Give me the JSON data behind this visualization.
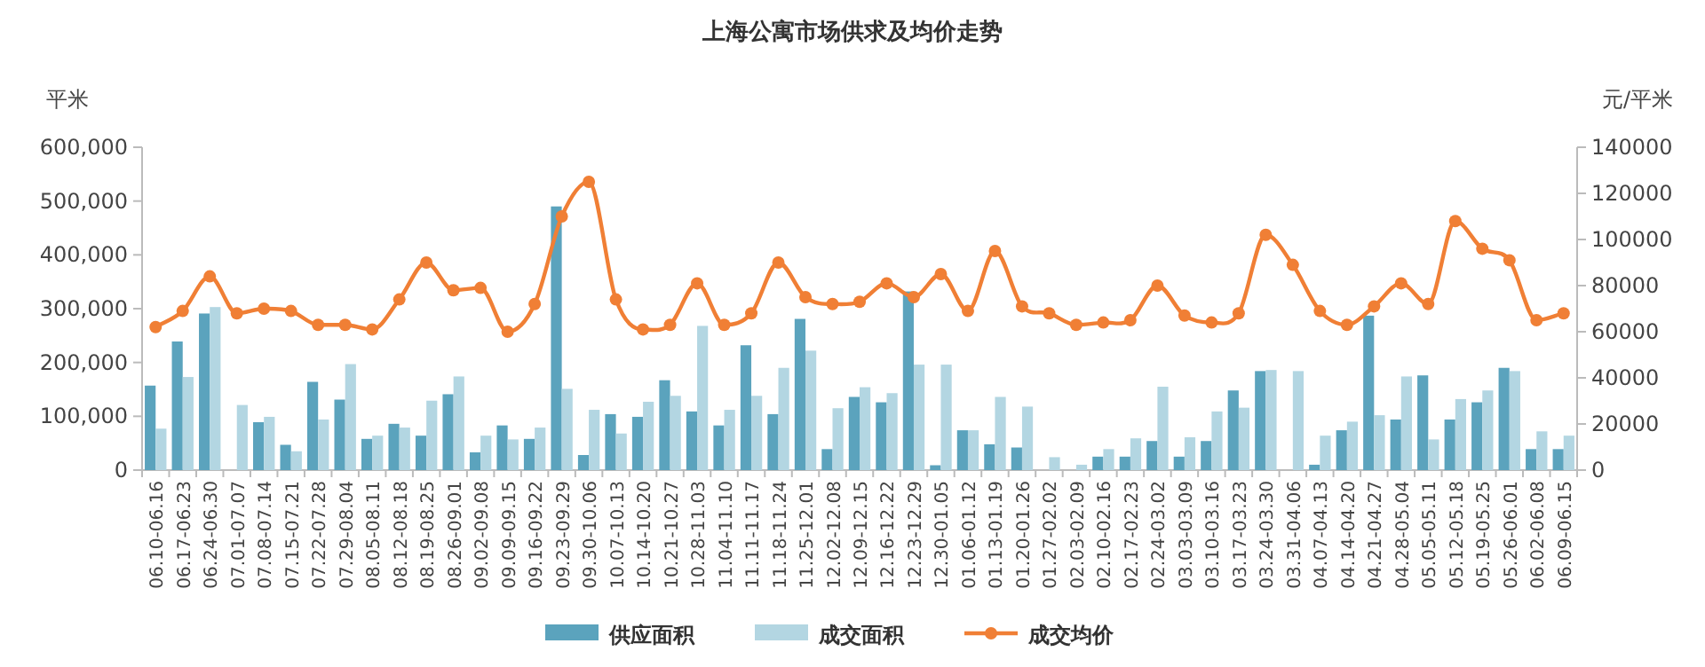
{
  "chart_data": {
    "type": "bar",
    "title": "上海公寓市场供求及均价走势",
    "ylabel": "平米",
    "y2label": "元/平米",
    "categories": [
      "06.10-06.16",
      "06.17-06.23",
      "06.24-06.30",
      "07.01-07.07",
      "07.08-07.14",
      "07.15-07.21",
      "07.22-07.28",
      "07.29-08.04",
      "08.05-08.11",
      "08.12-08.18",
      "08.19-08.25",
      "08.26-09.01",
      "09.02-09.08",
      "09.09-09.15",
      "09.16-09.22",
      "09.23-09.29",
      "09.30-10.06",
      "10.07-10.13",
      "10.14-10.20",
      "10.21-10.27",
      "10.28-11.03",
      "11.04-11.10",
      "11.11-11.17",
      "11.18-11.24",
      "11.25-12.01",
      "12.02-12.08",
      "12.09-12.15",
      "12.16-12.22",
      "12.23-12.29",
      "12.30-01.05",
      "01.06-01.12",
      "01.13-01.19",
      "01.20-01.26",
      "01.27-02.02",
      "02.03-02.09",
      "02.10-02.16",
      "02.17-02.23",
      "02.24-03.02",
      "03.03-03.09",
      "03.10-03.16",
      "03.17-03.23",
      "03.24-03.30",
      "03.31-04.06",
      "04.07-04.13",
      "04.14-04.20",
      "04.21-04.27",
      "04.28-05.04",
      "05.05-05.11",
      "05.12-05.18",
      "05.19-05.25",
      "05.26-06.01",
      "06.02-06.08",
      "06.09-06.15"
    ],
    "series": [
      {
        "name": "供应面积",
        "color": "#5ba3bd",
        "values": [
          157000,
          239000,
          291000,
          0,
          89000,
          47000,
          164000,
          131000,
          58000,
          86000,
          64000,
          141000,
          33000,
          83000,
          58000,
          490000,
          28000,
          104000,
          99000,
          167000,
          109000,
          83000,
          232000,
          104000,
          281000,
          39000,
          136000,
          126000,
          332000,
          9000,
          74000,
          48000,
          42000,
          0,
          0,
          25000,
          25000,
          54000,
          25000,
          54000,
          148000,
          184000,
          0,
          10000,
          74000,
          287000,
          94000,
          176000,
          94000,
          126000,
          190000,
          39000,
          39000
        ]
      },
      {
        "name": "成交面积",
        "color": "#b3d6e2",
        "values": [
          77000,
          173000,
          303000,
          121000,
          99000,
          35000,
          94000,
          197000,
          64000,
          79000,
          129000,
          174000,
          64000,
          57000,
          79000,
          151000,
          112000,
          68000,
          127000,
          138000,
          268000,
          112000,
          138000,
          190000,
          222000,
          115000,
          154000,
          143000,
          196000,
          196000,
          74000,
          136000,
          118000,
          24000,
          10000,
          39000,
          59000,
          155000,
          61000,
          109000,
          116000,
          186000,
          184000,
          64000,
          90000,
          102000,
          174000,
          57000,
          132000,
          148000,
          184000,
          72000,
          64000
        ]
      },
      {
        "name": "成交均价",
        "color": "#f07f35",
        "type": "line",
        "axis": "y2",
        "values": [
          62000,
          69000,
          84000,
          68000,
          70000,
          69000,
          63000,
          63000,
          61000,
          74000,
          90000,
          78000,
          79000,
          60000,
          72000,
          110000,
          125000,
          74000,
          61000,
          63000,
          81000,
          63000,
          68000,
          90000,
          75000,
          72000,
          73000,
          81000,
          75000,
          85000,
          69000,
          95000,
          71000,
          68000,
          63000,
          64000,
          65000,
          80000,
          67000,
          64000,
          68000,
          102000,
          89000,
          69000,
          63000,
          71000,
          81000,
          72000,
          108000,
          96000,
          91000,
          65000,
          68000
        ]
      }
    ],
    "ylim": [
      0,
      600000
    ],
    "yticks": [
      0,
      {
        "value": 100000,
        "label": "100,000"
      },
      {
        "value": 200000,
        "label": "200,000"
      },
      {
        "value": 300000,
        "label": "300,000"
      },
      {
        "value": 400000,
        "label": "400,000"
      },
      {
        "value": 500000,
        "label": "500,000"
      },
      {
        "value": 600000,
        "label": "600,000"
      }
    ],
    "y2lim": [
      0,
      140000
    ],
    "y2ticks": [
      0,
      20000,
      40000,
      60000,
      80000,
      100000,
      120000,
      140000
    ],
    "legend": "bottom",
    "marker": "circle"
  }
}
